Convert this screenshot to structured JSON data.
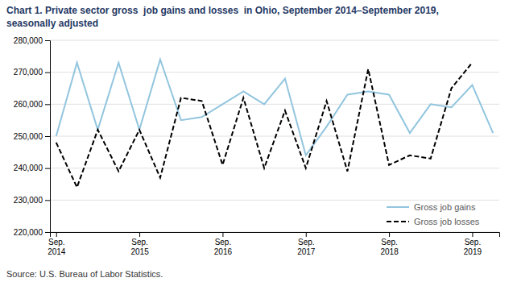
{
  "chart_data": {
    "type": "line",
    "title": "Chart 1. Private sector gross  job gains and losses  in Ohio, September 2014–September 2019,",
    "subtitle": "seasonally adjusted",
    "source": "Source: U.S. Bureau of Labor Statistics.",
    "categories": [
      "Sep.\n2014",
      null,
      null,
      null,
      "Sep.\n2015",
      null,
      null,
      null,
      "Sep.\n2016",
      null,
      null,
      null,
      "Sep.\n2017",
      null,
      null,
      null,
      "Sep.\n2018",
      null,
      null,
      null,
      "Sep.\n2019",
      null
    ],
    "series": [
      {
        "name": "Gross job gains",
        "color": "#92c5de",
        "line_style": "solid",
        "values": [
          250000,
          273000,
          252000,
          273000,
          252000,
          274000,
          255000,
          256000,
          260000,
          264000,
          260000,
          268000,
          244000,
          253000,
          263000,
          264000,
          263000,
          251000,
          260000,
          259000,
          266000,
          251000
        ]
      },
      {
        "name": "Gross job losses",
        "color": "#000000",
        "line_style": "dashed",
        "values": [
          248000,
          234000,
          252000,
          239000,
          252000,
          237000,
          262000,
          261000,
          241000,
          262000,
          240000,
          258000,
          240000,
          261000,
          239000,
          271000,
          241000,
          244000,
          243000,
          265000,
          273000,
          null
        ]
      }
    ],
    "ylim": [
      220000,
      280000
    ],
    "yticks": [
      {
        "value": 220000,
        "label": "220,000"
      },
      {
        "value": 230000,
        "label": "230,000"
      },
      {
        "value": 240000,
        "label": "240,000"
      },
      {
        "value": 250000,
        "label": "250,000"
      },
      {
        "value": 260000,
        "label": "260,000"
      },
      {
        "value": 270000,
        "label": "270,000"
      },
      {
        "value": 280000,
        "label": "280,000"
      }
    ],
    "grid": true,
    "legend": "lower right"
  }
}
